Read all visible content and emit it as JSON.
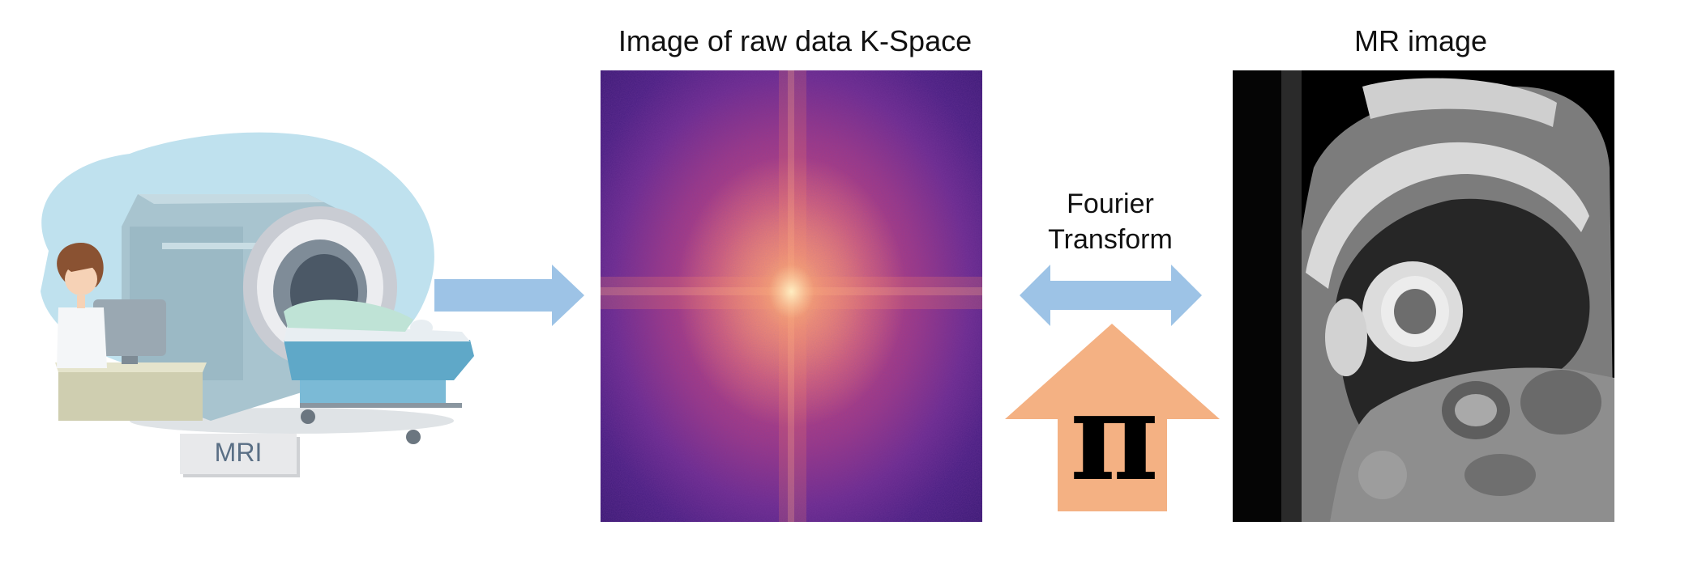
{
  "scanner": {
    "sign_label": "MRI"
  },
  "kspace": {
    "title": "Image of raw data K-Space"
  },
  "transform": {
    "label_line1": "Fourier",
    "label_line2": "Transform",
    "symbol": "π"
  },
  "mr_image": {
    "title": "MR image"
  },
  "colors": {
    "arrow_blue": "#9dc3e6",
    "arrow_orange": "#f4b183",
    "blob_blue": "#bfe1ee"
  },
  "icons": [
    "mri-scanner-icon",
    "doctor-icon",
    "arrow-right-icon",
    "double-arrow-icon",
    "arrow-up-icon"
  ]
}
